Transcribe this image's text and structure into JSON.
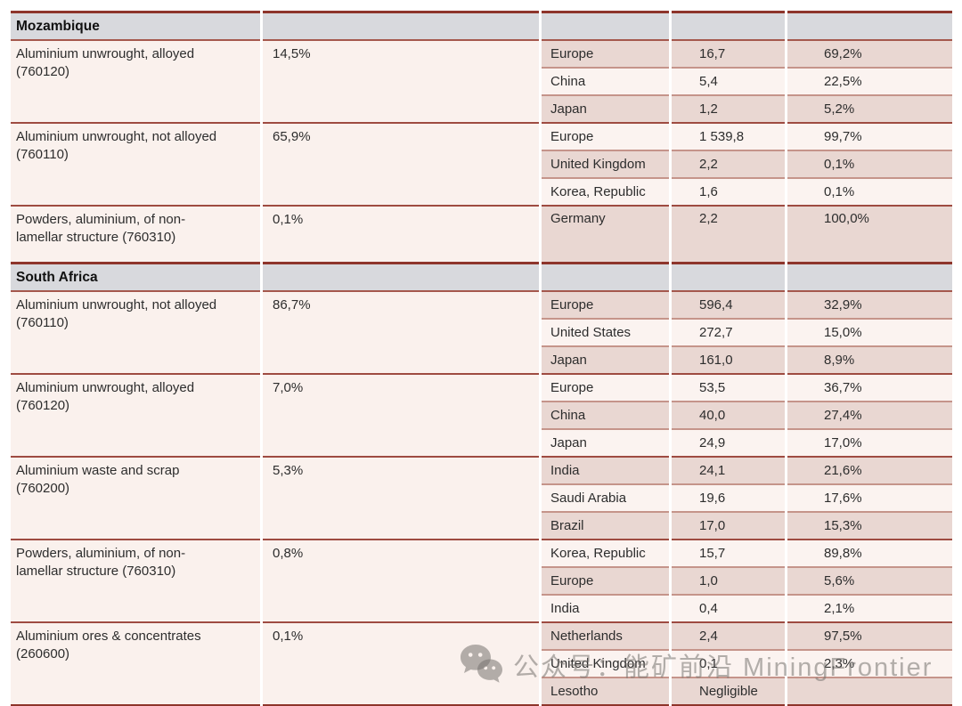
{
  "table": {
    "sections": [
      {
        "name": "Mozambique",
        "groups": [
          {
            "product": "Aluminium unwrought, alloyed (760120)",
            "share": "14,5%",
            "destinations": [
              {
                "country": "Europe",
                "value": "16,7",
                "pct": "69,2%"
              },
              {
                "country": "China",
                "value": "5,4",
                "pct": "22,5%"
              },
              {
                "country": "Japan",
                "value": "1,2",
                "pct": "5,2%"
              }
            ]
          },
          {
            "product": "Aluminium unwrought, not alloyed (760110)",
            "share": "65,9%",
            "destinations": [
              {
                "country": "Europe",
                "value": "1 539,8",
                "pct": "99,7%"
              },
              {
                "country": "United Kingdom",
                "value": "2,2",
                "pct": "0,1%"
              },
              {
                "country": "Korea, Republic",
                "value": "1,6",
                "pct": "0,1%"
              }
            ]
          },
          {
            "product": "Powders, aluminium, of non-lamellar structure (760310)",
            "share": "0,1%",
            "destinations": [
              {
                "country": "Germany",
                "value": "2,2",
                "pct": "100,0%"
              }
            ]
          }
        ]
      },
      {
        "name": "South Africa",
        "groups": [
          {
            "product": "Aluminium unwrought, not alloyed (760110)",
            "share": "86,7%",
            "destinations": [
              {
                "country": "Europe",
                "value": "596,4",
                "pct": "32,9%"
              },
              {
                "country": "United States",
                "value": "272,7",
                "pct": "15,0%"
              },
              {
                "country": "Japan",
                "value": "161,0",
                "pct": "8,9%"
              }
            ]
          },
          {
            "product": "Aluminium unwrought, alloyed (760120)",
            "share": "7,0%",
            "destinations": [
              {
                "country": "Europe",
                "value": "53,5",
                "pct": "36,7%"
              },
              {
                "country": "China",
                "value": "40,0",
                "pct": "27,4%"
              },
              {
                "country": "Japan",
                "value": "24,9",
                "pct": "17,0%"
              }
            ]
          },
          {
            "product": "Aluminium waste and scrap (760200)",
            "share": "5,3%",
            "destinations": [
              {
                "country": "India",
                "value": "24,1",
                "pct": "21,6%"
              },
              {
                "country": "Saudi Arabia",
                "value": "19,6",
                "pct": "17,6%"
              },
              {
                "country": "Brazil",
                "value": "17,0",
                "pct": "15,3%"
              }
            ]
          },
          {
            "product": "Powders, aluminium, of non-lamellar structure (760310)",
            "share": "0,8%",
            "destinations": [
              {
                "country": "Korea, Republic",
                "value": "15,7",
                "pct": "89,8%"
              },
              {
                "country": "Europe",
                "value": "1,0",
                "pct": "5,6%"
              },
              {
                "country": "India",
                "value": "0,4",
                "pct": "2,1%"
              }
            ]
          },
          {
            "product": "Aluminium ores & concentrates (260600)",
            "share": "0,1%",
            "destinations": [
              {
                "country": "Netherlands",
                "value": "2,4",
                "pct": "97,5%"
              },
              {
                "country": "United Kingdom",
                "value": "0,1",
                "pct": "2,3%"
              },
              {
                "country": "Lesotho",
                "value": "Negligible",
                "pct": ""
              }
            ]
          }
        ]
      }
    ]
  },
  "watermark": {
    "icon": "wechat-icon",
    "text": "公众号：能矿前沿 MiningFrontier"
  },
  "colors": {
    "section_border": "#8e352b",
    "group_border": "#9e4b41",
    "row_border": "#c5948a",
    "header_bg": "#d8d9dd",
    "light_row_bg": "#faf1ed",
    "dark_row_bg": "#e9d7d2",
    "watermark_grey": "#a8a5a2"
  }
}
